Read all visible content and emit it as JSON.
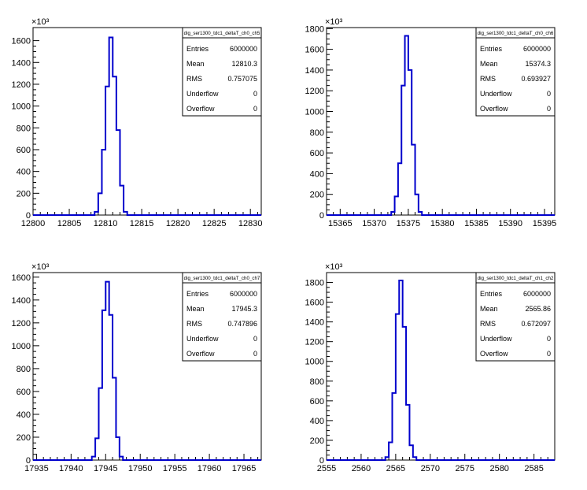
{
  "chart_data": [
    {
      "type": "histogram",
      "title": "",
      "xlabel": "",
      "ylabel": "",
      "y_multiplier_label": "×10³",
      "xlim": [
        12800,
        12831.5
      ],
      "ylim": [
        0,
        1720
      ],
      "xticks": [
        12800,
        12805,
        12810,
        12815,
        12820,
        12825,
        12830
      ],
      "yticks": [
        0,
        200,
        400,
        600,
        800,
        1000,
        1200,
        1400,
        1600
      ],
      "ytick_labels": [
        "0",
        "200",
        "400",
        "600",
        "800",
        "1000",
        "1200",
        "1400",
        "1600"
      ],
      "bin_width": 0.5,
      "bins": [
        {
          "x": 12808.5,
          "y": 30
        },
        {
          "x": 12809.0,
          "y": 200
        },
        {
          "x": 12809.5,
          "y": 600
        },
        {
          "x": 12810.0,
          "y": 1180
        },
        {
          "x": 12810.5,
          "y": 1630
        },
        {
          "x": 12811.0,
          "y": 1270
        },
        {
          "x": 12811.5,
          "y": 780
        },
        {
          "x": 12812.0,
          "y": 270
        },
        {
          "x": 12812.5,
          "y": 30
        }
      ],
      "series_color": "#0000cc",
      "stats": {
        "name": "dig_ser1300_tdc1_deltaT_ch0_ch5",
        "rows": [
          {
            "label": "Entries",
            "value": "6000000"
          },
          {
            "label": "Mean",
            "value": "12810.3"
          },
          {
            "label": "RMS",
            "value": "0.757075"
          },
          {
            "label": "Underflow",
            "value": "0"
          },
          {
            "label": "Overflow",
            "value": "0"
          }
        ]
      }
    },
    {
      "type": "histogram",
      "title": "",
      "xlabel": "",
      "ylabel": "",
      "y_multiplier_label": "×10³",
      "xlim": [
        15363,
        15396.5
      ],
      "ylim": [
        0,
        1810
      ],
      "xticks": [
        15365,
        15370,
        15375,
        15380,
        15385,
        15390,
        15395
      ],
      "yticks": [
        0,
        200,
        400,
        600,
        800,
        1000,
        1200,
        1400,
        1600,
        1800
      ],
      "ytick_labels": [
        "0",
        "200",
        "400",
        "600",
        "800",
        "1000",
        "1200",
        "1400",
        "1600",
        "1800"
      ],
      "bin_width": 0.5,
      "bins": [
        {
          "x": 15372.5,
          "y": 30
        },
        {
          "x": 15373.0,
          "y": 180
        },
        {
          "x": 15373.5,
          "y": 500
        },
        {
          "x": 15374.0,
          "y": 1250
        },
        {
          "x": 15374.5,
          "y": 1730
        },
        {
          "x": 15375.0,
          "y": 1400
        },
        {
          "x": 15375.5,
          "y": 680
        },
        {
          "x": 15376.0,
          "y": 200
        },
        {
          "x": 15376.5,
          "y": 30
        }
      ],
      "series_color": "#0000cc",
      "stats": {
        "name": "dig_ser1300_tdc1_deltaT_ch0_ch6",
        "rows": [
          {
            "label": "Entries",
            "value": "6000000"
          },
          {
            "label": "Mean",
            "value": "15374.3"
          },
          {
            "label": "RMS",
            "value": "0.693927"
          },
          {
            "label": "Underflow",
            "value": "0"
          },
          {
            "label": "Overflow",
            "value": "0"
          }
        ]
      }
    },
    {
      "type": "histogram",
      "title": "",
      "xlabel": "",
      "ylabel": "",
      "y_multiplier_label": "×10³",
      "xlim": [
        17934.5,
        17967.5
      ],
      "ylim": [
        0,
        1640
      ],
      "xticks": [
        17935,
        17940,
        17945,
        17950,
        17955,
        17960,
        17965
      ],
      "yticks": [
        0,
        200,
        400,
        600,
        800,
        1000,
        1200,
        1400,
        1600
      ],
      "ytick_labels": [
        "0",
        "200",
        "400",
        "600",
        "800",
        "1000",
        "1200",
        "1400",
        "1600"
      ],
      "bin_width": 0.5,
      "bins": [
        {
          "x": 17943.0,
          "y": 30
        },
        {
          "x": 17943.5,
          "y": 190
        },
        {
          "x": 17944.0,
          "y": 630
        },
        {
          "x": 17944.5,
          "y": 1310
        },
        {
          "x": 17945.0,
          "y": 1560
        },
        {
          "x": 17945.5,
          "y": 1270
        },
        {
          "x": 17946.0,
          "y": 720
        },
        {
          "x": 17946.5,
          "y": 200
        },
        {
          "x": 17947.0,
          "y": 30
        }
      ],
      "series_color": "#0000cc",
      "stats": {
        "name": "dig_ser1300_tdc1_deltaT_ch0_ch7",
        "rows": [
          {
            "label": "Entries",
            "value": "6000000"
          },
          {
            "label": "Mean",
            "value": "17945.3"
          },
          {
            "label": "RMS",
            "value": "0.747896"
          },
          {
            "label": "Underflow",
            "value": "0"
          },
          {
            "label": "Overflow",
            "value": "0"
          }
        ]
      }
    },
    {
      "type": "histogram",
      "title": "",
      "xlabel": "",
      "ylabel": "",
      "y_multiplier_label": "×10³",
      "xlim": [
        2555,
        2588
      ],
      "ylim": [
        0,
        1900
      ],
      "xticks": [
        2555,
        2560,
        2565,
        2570,
        2575,
        2580,
        2585
      ],
      "yticks": [
        0,
        200,
        400,
        600,
        800,
        1000,
        1200,
        1400,
        1600,
        1800
      ],
      "ytick_labels": [
        "0",
        "200",
        "400",
        "600",
        "800",
        "1000",
        "1200",
        "1400",
        "1600",
        "1800"
      ],
      "bin_width": 0.5,
      "bins": [
        {
          "x": 2563.5,
          "y": 30
        },
        {
          "x": 2564.0,
          "y": 180
        },
        {
          "x": 2564.5,
          "y": 680
        },
        {
          "x": 2565.0,
          "y": 1480
        },
        {
          "x": 2565.5,
          "y": 1820
        },
        {
          "x": 2566.0,
          "y": 1350
        },
        {
          "x": 2566.5,
          "y": 560
        },
        {
          "x": 2567.0,
          "y": 150
        },
        {
          "x": 2567.5,
          "y": 30
        }
      ],
      "series_color": "#0000cc",
      "stats": {
        "name": "dig_ser1300_tdc1_deltaT_ch1_ch2",
        "rows": [
          {
            "label": "Entries",
            "value": "6000000"
          },
          {
            "label": "Mean",
            "value": "2565.86"
          },
          {
            "label": "RMS",
            "value": "0.672097"
          },
          {
            "label": "Underflow",
            "value": "0"
          },
          {
            "label": "Overflow",
            "value": "0"
          }
        ]
      }
    }
  ]
}
